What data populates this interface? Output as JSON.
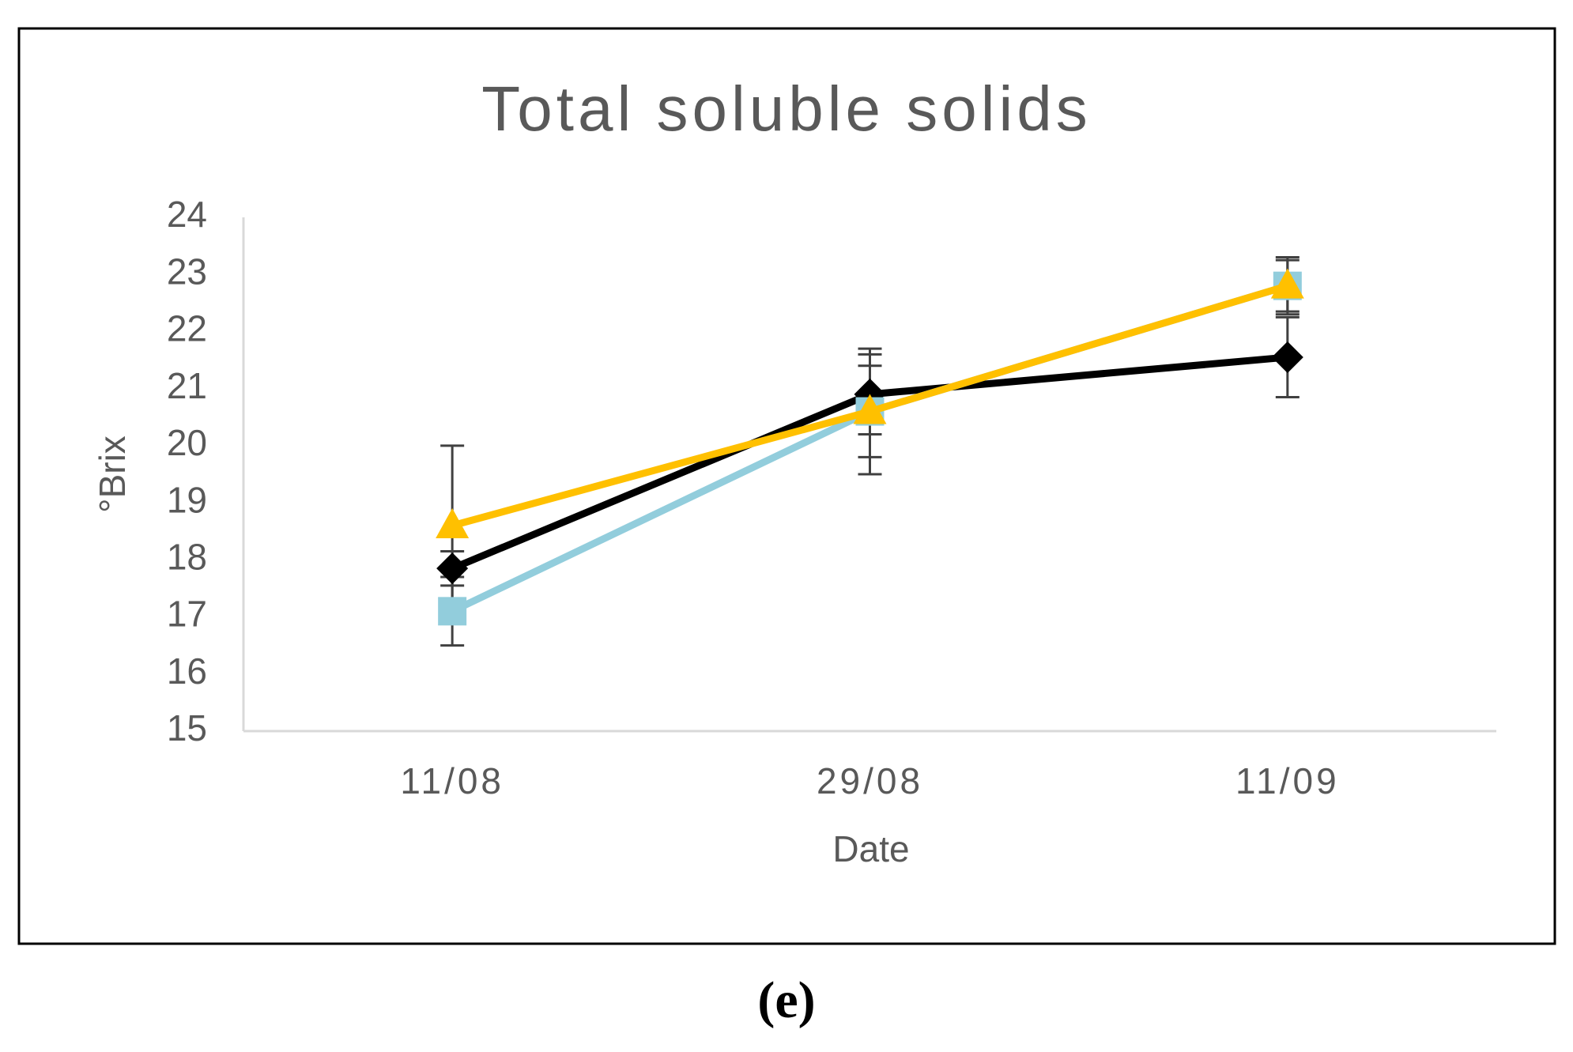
{
  "chart_data": {
    "type": "line",
    "title": "Total soluble solids",
    "x_label": "Date",
    "y_label": "°Brix",
    "categories": [
      "11/08",
      "29/08",
      "11/09"
    ],
    "series": [
      {
        "color": "#000000",
        "marker": "diamond",
        "values": [
          17.85,
          20.9,
          21.55
        ],
        "errors": [
          0.3,
          0.7,
          0.7
        ]
      },
      {
        "color": "#92cddc",
        "marker": "square",
        "values": [
          17.1,
          20.6,
          22.8
        ],
        "errors": [
          0.6,
          1.1,
          0.5
        ]
      },
      {
        "color": "#ffc000",
        "marker": "triangle",
        "values": [
          18.6,
          20.6,
          22.8
        ],
        "errors": [
          1.4,
          0.8,
          0.45
        ]
      }
    ],
    "ylim": [
      15,
      24
    ],
    "yticks": [
      15,
      16,
      17,
      18,
      19,
      20,
      21,
      22,
      23,
      24
    ],
    "grid": false
  },
  "caption": "(e)"
}
